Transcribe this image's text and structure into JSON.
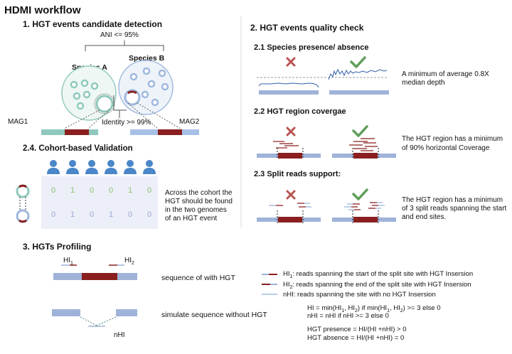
{
  "title": "HDMI workflow",
  "section1": {
    "heading": "1. HGT events candidate detection",
    "ani_label": "ANI <= 95%",
    "species_a": "Species A",
    "species_b": "Species B",
    "mag1": "MAG1",
    "mag2": "MAG2",
    "identity_label": "Identity >= 99%"
  },
  "section2": {
    "heading": "2. HGT events quality check",
    "sub1": {
      "heading": "2.1 Species presence/ absence",
      "desc_line1": "A minimum of average 0.8X",
      "desc_line2": "median depth"
    },
    "sub2": {
      "heading": "2.2 HGT region covergae",
      "desc_line1": "The HGT region has a minimum",
      "desc_line2": "of 90% horizontal Coverage"
    },
    "sub3": {
      "heading": "2.3 Split reads support:",
      "desc_line1": "The HGT region has a minimum",
      "desc_line2": "of 3 split reads spanning the start",
      "desc_line3": "and end sites."
    },
    "fail_icon": "cross-icon",
    "pass_icon": "check-icon",
    "colors": {
      "fail": "#b85450",
      "pass": "#5f9e5a"
    }
  },
  "section24": {
    "heading": "2.4. Cohort-based Validation",
    "row1": [
      "0",
      "1",
      "0",
      "0",
      "1",
      "0"
    ],
    "row2": [
      "0",
      "1",
      "0",
      "1",
      "0",
      "0"
    ],
    "desc_line1": "Across the cohort the",
    "desc_line2": "HGT should be found",
    "desc_line3": "in the two genomes",
    "desc_line4": "of an HGT event"
  },
  "section3": {
    "heading": "3. HGTs Profiling",
    "hi1": "HI",
    "hi1_sub": "1",
    "hi2": "HI",
    "hi2_sub": "2",
    "nhi": "nHI",
    "seq_with": "sequence of with HGT",
    "seq_without": "simulate sequence without HGT",
    "legend1_a": "HI",
    "legend1_sub": "1",
    "legend1_b": ": reads spanning the start of the split site with HGT Insersion",
    "legend2_a": "HI",
    "legend2_sub": "2",
    "legend2_b": ": reads spanning the end of the split site with HGT Insersion",
    "legend3": "nHI: reads spanning the site with no HGT Insersion",
    "formula1_a": "HI = min(HI",
    "formula1_s1": "1",
    "formula1_b": ", HI",
    "formula1_s2": "2",
    "formula1_c": ") if min(HI",
    "formula1_s3": "1",
    "formula1_d": ", HI",
    "formula1_s4": "2",
    "formula1_e": ") >= 3 else 0",
    "formula2": "nHI = nHI if nHI >= 3 else 0",
    "formula3": "HGT presence = HI/(HI +nHI) > 0",
    "formula4": "HGT absence = HI/(HI +nHI) = 0"
  },
  "colors": {
    "seq_blue": "#9fb3d9",
    "hgt_red": "#8b1f1f",
    "teal": "#8fc9bd",
    "light_blue": "#b8cbe8",
    "person": "#4a86c8"
  }
}
